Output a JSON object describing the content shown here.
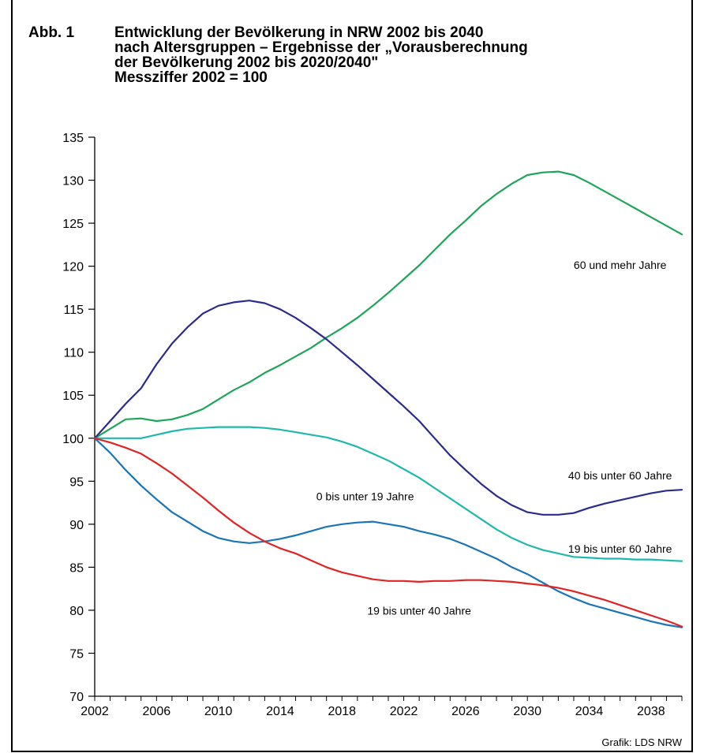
{
  "figure": {
    "label": "Abb. 1",
    "title_lines": [
      "Entwicklung der Bevölkerung in NRW 2002 bis 2040",
      "nach Altersgruppen – Ergebnisse der „Vorausberechnung",
      "der Bevölkerung 2002 bis 2020/2040\"",
      "Messziffer 2002 = 100"
    ],
    "credit": "Grafik: LDS NRW"
  },
  "chart_data": {
    "type": "line",
    "title": "Entwicklung der Bevölkerung in NRW 2002 bis 2040 nach Altersgruppen – Ergebnisse der „Vorausberechnung der Bevölkerung 2002 bis 2020/2040\" Messziffer 2002 = 100",
    "xlabel": "",
    "ylabel": "",
    "xlim": [
      2002,
      2040
    ],
    "ylim": [
      70,
      135
    ],
    "x_ticks": [
      2002,
      2006,
      2010,
      2014,
      2018,
      2022,
      2026,
      2030,
      2034,
      2038
    ],
    "y_ticks": [
      70,
      75,
      80,
      85,
      90,
      95,
      100,
      105,
      110,
      115,
      120,
      125,
      130,
      135
    ],
    "grid": false,
    "legend": "inline labels",
    "series": [
      {
        "name": "60 und mehr Jahre",
        "color": "#1ea55a",
        "x": [
          2002,
          2003,
          2004,
          2005,
          2006,
          2007,
          2008,
          2009,
          2010,
          2011,
          2012,
          2013,
          2014,
          2015,
          2016,
          2017,
          2018,
          2019,
          2020,
          2021,
          2022,
          2023,
          2024,
          2025,
          2026,
          2027,
          2028,
          2029,
          2030,
          2031,
          2032,
          2033,
          2034,
          2035,
          2036,
          2037,
          2038,
          2039,
          2040
        ],
        "values": [
          100,
          101.1,
          102.2,
          102.3,
          102,
          102.2,
          102.7,
          103.4,
          104.5,
          105.6,
          106.5,
          107.6,
          108.5,
          109.5,
          110.5,
          111.7,
          112.8,
          114,
          115.4,
          116.9,
          118.5,
          120.1,
          121.9,
          123.7,
          125.3,
          127,
          128.4,
          129.6,
          130.6,
          130.9,
          131,
          130.6,
          129.7,
          128.7,
          127.7,
          126.7,
          125.7,
          124.7,
          123.7
        ]
      },
      {
        "name": "40 bis unter 60 Jahre",
        "color": "#2b2b8f",
        "x": [
          2002,
          2003,
          2004,
          2005,
          2006,
          2007,
          2008,
          2009,
          2010,
          2011,
          2012,
          2013,
          2014,
          2015,
          2016,
          2017,
          2018,
          2019,
          2020,
          2021,
          2022,
          2023,
          2024,
          2025,
          2026,
          2027,
          2028,
          2029,
          2030,
          2031,
          2032,
          2033,
          2034,
          2035,
          2036,
          2037,
          2038,
          2039,
          2040
        ],
        "values": [
          100,
          102,
          104,
          105.8,
          108.6,
          111,
          112.9,
          114.5,
          115.4,
          115.8,
          116,
          115.7,
          115,
          114,
          112.8,
          111.5,
          110,
          108.5,
          106.9,
          105.3,
          103.7,
          102,
          100,
          98,
          96.3,
          94.7,
          93.3,
          92.2,
          91.4,
          91.1,
          91.1,
          91.3,
          91.9,
          92.4,
          92.8,
          93.2,
          93.6,
          93.9,
          94
        ]
      },
      {
        "name": "19 bis unter 60 Jahre",
        "color": "#1fb8ac",
        "x": [
          2002,
          2003,
          2004,
          2005,
          2006,
          2007,
          2008,
          2009,
          2010,
          2011,
          2012,
          2013,
          2014,
          2015,
          2016,
          2017,
          2018,
          2019,
          2020,
          2021,
          2022,
          2023,
          2024,
          2025,
          2026,
          2027,
          2028,
          2029,
          2030,
          2031,
          2032,
          2033,
          2034,
          2035,
          2036,
          2037,
          2038,
          2039,
          2040
        ],
        "values": [
          100,
          100,
          100,
          100,
          100.4,
          100.8,
          101.1,
          101.2,
          101.3,
          101.3,
          101.3,
          101.2,
          101,
          100.7,
          100.4,
          100.1,
          99.6,
          99,
          98.2,
          97.4,
          96.4,
          95.4,
          94.2,
          93,
          91.8,
          90.6,
          89.4,
          88.4,
          87.6,
          87,
          86.6,
          86.2,
          86.1,
          86,
          86,
          85.9,
          85.9,
          85.8,
          85.7
        ]
      },
      {
        "name": "0 bis unter 19 Jahre",
        "color": "#1a74b8",
        "x": [
          2002,
          2003,
          2004,
          2005,
          2006,
          2007,
          2008,
          2009,
          2010,
          2011,
          2012,
          2013,
          2014,
          2015,
          2016,
          2017,
          2018,
          2019,
          2020,
          2021,
          2022,
          2023,
          2024,
          2025,
          2026,
          2027,
          2028,
          2029,
          2030,
          2031,
          2032,
          2033,
          2034,
          2035,
          2036,
          2037,
          2038,
          2039,
          2040
        ],
        "values": [
          100,
          98.3,
          96.3,
          94.5,
          92.9,
          91.4,
          90.3,
          89.2,
          88.4,
          88,
          87.8,
          88,
          88.3,
          88.7,
          89.2,
          89.7,
          90,
          90.2,
          90.3,
          90,
          89.7,
          89.2,
          88.8,
          88.3,
          87.6,
          86.8,
          86,
          85,
          84.2,
          83.2,
          82.2,
          81.4,
          80.7,
          80.2,
          79.7,
          79.2,
          78.7,
          78.3,
          78
        ]
      },
      {
        "name": "19 bis unter 40 Jahre",
        "color": "#e02424",
        "x": [
          2002,
          2003,
          2004,
          2005,
          2006,
          2007,
          2008,
          2009,
          2010,
          2011,
          2012,
          2013,
          2014,
          2015,
          2016,
          2017,
          2018,
          2019,
          2020,
          2021,
          2022,
          2023,
          2024,
          2025,
          2026,
          2027,
          2028,
          2029,
          2030,
          2031,
          2032,
          2033,
          2034,
          2035,
          2036,
          2037,
          2038,
          2039,
          2040
        ],
        "values": [
          100,
          99.5,
          98.9,
          98.2,
          97.1,
          95.9,
          94.5,
          93.1,
          91.6,
          90.2,
          89,
          88,
          87.2,
          86.6,
          85.8,
          85,
          84.4,
          84,
          83.6,
          83.4,
          83.4,
          83.3,
          83.4,
          83.4,
          83.5,
          83.5,
          83.4,
          83.3,
          83.1,
          82.9,
          82.6,
          82.2,
          81.7,
          81.2,
          80.6,
          80,
          79.4,
          78.8,
          78.1
        ]
      }
    ]
  }
}
